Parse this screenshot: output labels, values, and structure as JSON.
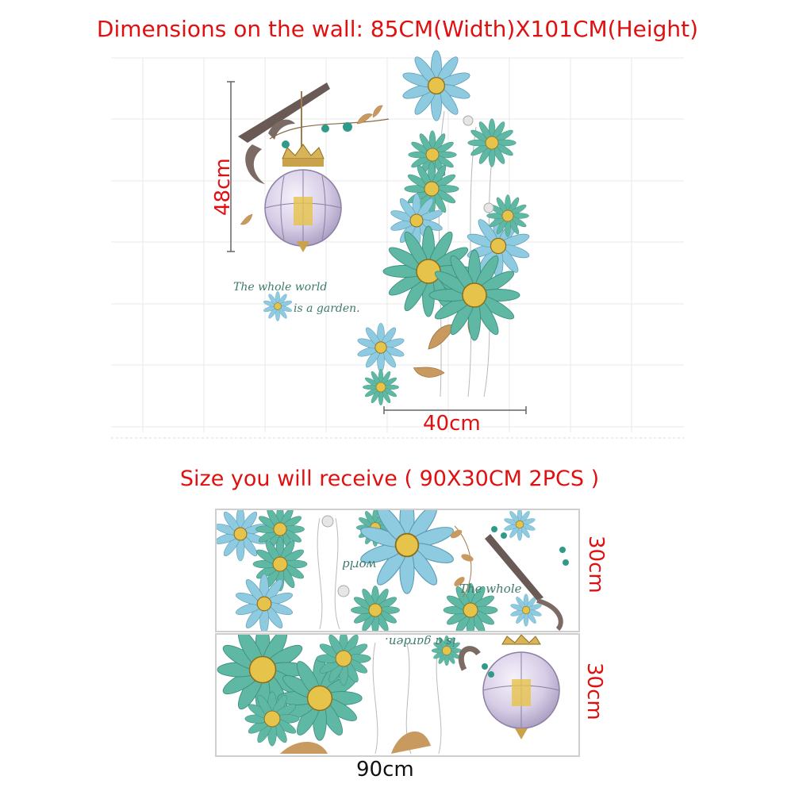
{
  "heading": "Dimensions on the wall: 85CM(Width)X101CM(Height)",
  "subheading": "Size you will receive ( 90X30CM 2PCS )",
  "wall_height_label": "48cm",
  "wall_width_label": "40cm",
  "sheet_height_label_1": "30cm",
  "sheet_height_label_2": "30cm",
  "sheet_width_label": "90cm",
  "quote_line_1": "The whole world",
  "quote_line_2": "is a garden.",
  "sheet1_quote_a": "world",
  "sheet1_quote_b": "The whole",
  "sheet2_quote": "is a garden.",
  "colors": {
    "label_red": "#e01010",
    "petal_teal": "#5fb8a4",
    "petal_blue": "#8ecbe0",
    "flower_center": "#e6c34a",
    "leaf_brown": "#c99a60",
    "grid": "#e8e8e8"
  }
}
